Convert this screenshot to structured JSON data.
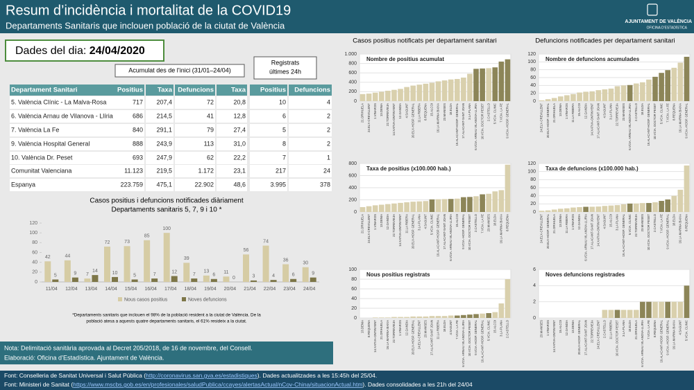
{
  "header": {
    "title": "Resum d’incidència i mortalitat de la COVID19",
    "subtitle": "Departaments Sanitaris que inclouen població de la ciutat de València",
    "logo": [
      "AJUNTAMENT DE VALÈNCIA",
      "OFICINA D'ESTADÍSTICA"
    ]
  },
  "date": {
    "label": "Dades del dia:",
    "value": "24/04/2020"
  },
  "table": {
    "group_cumulative": "Acumulat des de l’inici (31/01–24/04)",
    "group_daily": [
      "Registrats",
      "últimes 24h"
    ],
    "columns": [
      "Departament Sanitari",
      "Positius",
      "Taxa",
      "Defuncions",
      "Taxa",
      "Positius",
      "Defuncions"
    ],
    "rows": [
      [
        "5. València Clínic - La Malva-Rosa",
        "717",
        "207,4",
        "72",
        "20,8",
        "10",
        "4"
      ],
      [
        "6. València Arnau de Vilanova - Llíria",
        "686",
        "214,5",
        "41",
        "12,8",
        "6",
        "2"
      ],
      [
        "7. València La Fe",
        "840",
        "291,1",
        "79",
        "27,4",
        "5",
        "2"
      ],
      [
        "9. València Hospital General",
        "888",
        "243,9",
        "113",
        "31,0",
        "8",
        "2"
      ],
      [
        "10. València Dr. Peset",
        "693",
        "247,9",
        "62",
        "22,2",
        "7",
        "1"
      ]
    ],
    "totals": [
      [
        "Comunitat Valenciana",
        "11.123",
        "219,5",
        "1.172",
        "23,1",
        "217",
        "24"
      ],
      [
        "Espanya",
        "223.759",
        "475,1",
        "22.902",
        "48,6",
        "3.995",
        "378"
      ]
    ]
  },
  "panel_titles": [
    "Casos positius notificats per departament sanitari",
    "Defuncions notificades per departament sanitari"
  ],
  "notes": [
    "Nota: Delimitació sanitària aprovada al Decret 205/2018, de 16 de novembre, del Consell.",
    "Elaboració: Oficina d’Estadística. Ajuntament de València."
  ],
  "footer": [
    [
      "Font: Conselleria de Sanitat Universal i Salut Pública (",
      "http://coronavirus.san.gva.es/estadistiques",
      "). Dades actualitzades a les 15:45h del 25/04."
    ],
    [
      "Font: Ministeri de Sanitat (",
      "https://www.mscbs.gob.es/en/profesionales/saludPublica/ccayes/alertasActual/nCov-China/situacionActual.htm",
      "). Dades consolidades a les 21h del 24/04"
    ]
  ],
  "chart_data": [
    {
      "type": "grouped",
      "title": "Casos positius i defuncions notificades diàriament",
      "subtitle": "Departaments sanitaris 5, 7, 9 i 10 *",
      "note": [
        "*Departaments sanitaris que inclouen el 98% de la població resident a la ciutat de València. De la",
        "població atesa a aquests quatre departaments sanitaris, el 61% resideix a la ciutat."
      ],
      "categories": [
        "11/04",
        "12/04",
        "13/04",
        "14/04",
        "15/04",
        "16/04",
        "17/04",
        "18/04",
        "19/04",
        "20/04",
        "21/04",
        "22/04",
        "23/04",
        "24/04"
      ],
      "series": [
        {
          "name": "Nous casos positius",
          "color": "#d6cca4",
          "values": [
            42,
            44,
            7,
            72,
            73,
            85,
            100,
            39,
            13,
            11,
            56,
            74,
            36,
            30
          ]
        },
        {
          "name": "Noves defuncions",
          "color": "#7d7648",
          "values": [
            5,
            9,
            14,
            10,
            5,
            7,
            12,
            7,
            6,
            0,
            3,
            4,
            6,
            9
          ]
        }
      ],
      "ylim": [
        0,
        120
      ],
      "yticks": [
        0,
        20,
        40,
        60,
        80,
        100,
        120
      ],
      "grid": false,
      "legend": "bottom"
    },
    {
      "type": "bar",
      "title": "Nombre de positius acumulat",
      "ylim": [
        0,
        1000
      ],
      "yticks": [
        0,
        200,
        400,
        600,
        800,
        {
          "value": 1000,
          "label": "1.000"
        }
      ],
      "grid": true,
      "categories": [
        "21.ORIHUELA",
        "24.ELX-CREVILLENT",
        "1.VINAROS",
        "13.DENIA",
        "22.TORREVIEJA",
        "14.XATIVA-ONTINYENT",
        "12.GANDIA",
        "4.SAGUNT",
        "20.ELX-HOSP. GENERAL",
        "11.LA RIBERA",
        "8.REQUENA",
        "15.ALCOI",
        "16.LA MARINA BAIXA",
        "23.MANISES",
        "18.ELDA",
        "19.ALACANT-HOSP. GENERAL",
        "17.ALACANT-SANT JOAN",
        "3.LA PLANA",
        "6.VCIA. ARNAU VILANOVA-LLIRIA",
        "10.VCIA. DOCTOR PESET",
        "2.CASTELLO",
        "5.VCIA. CLINIC",
        "7.VCIA. LA FE",
        "9.VCIA.-HOSP. GENERAL"
      ],
      "values": [
        150,
        160,
        180,
        200,
        220,
        240,
        260,
        300,
        330,
        350,
        370,
        390,
        420,
        440,
        460,
        470,
        500,
        580,
        686,
        693,
        700,
        717,
        840,
        888
      ],
      "colors": [
        "#d9d0ad",
        "#d9d0ad",
        "#d9d0ad",
        "#d9d0ad",
        "#d9d0ad",
        "#d9d0ad",
        "#d9d0ad",
        "#d9d0ad",
        "#d9d0ad",
        "#d9d0ad",
        "#d9d0ad",
        "#d9d0ad",
        "#d9d0ad",
        "#d9d0ad",
        "#d9d0ad",
        "#d9d0ad",
        "#d9d0ad",
        "#d9d0ad",
        "#8c8558",
        "#8c8558",
        "#d9d0ad",
        "#8c8558",
        "#8c8558",
        "#8c8558"
      ]
    },
    {
      "type": "bar",
      "title": "Nombre de defuncions acumulades",
      "ylim": [
        0,
        120
      ],
      "yticks": [
        0,
        20,
        40,
        60,
        80,
        100,
        120
      ],
      "grid": true,
      "categories": [
        "24.ELX-CREVILLENT",
        "20.ELX-HOSP. GENERAL",
        "21.ORIHUELA",
        "13.DENIA",
        "1.VINAROS",
        "11.LA RIBERA",
        "15.ALCOI",
        "12.GANDIA",
        "14.XATIVA-ONTINYENT",
        "17.ALACANT-SANT JOAN",
        "4.SAGUNT",
        "3.LA PLANA",
        "22.TORREVIEJA",
        "23.MANISES",
        "6.VCIA. ARNAU VILANOVA-LLIRIA",
        "2.CASTELLO",
        "18.ELDA",
        "19.ALACANT-HOSP. GENERAL",
        "10.VCIA. DOCTOR PESET",
        "5.VCIA. CLINIC",
        "7.VCIA. LA FE",
        "8.REQUENA",
        "16.LA MARINA BAIXA",
        "9.VCIA.-HOSP. GENERAL"
      ],
      "values": [
        2,
        5,
        8,
        12,
        15,
        18,
        22,
        24,
        25,
        28,
        30,
        32,
        38,
        40,
        41,
        45,
        48,
        55,
        62,
        72,
        79,
        85,
        98,
        113
      ],
      "colors": [
        "#d9d0ad",
        "#d9d0ad",
        "#d9d0ad",
        "#d9d0ad",
        "#d9d0ad",
        "#d9d0ad",
        "#d9d0ad",
        "#d9d0ad",
        "#d9d0ad",
        "#d9d0ad",
        "#d9d0ad",
        "#d9d0ad",
        "#d9d0ad",
        "#d9d0ad",
        "#8c8558",
        "#d9d0ad",
        "#d9d0ad",
        "#d9d0ad",
        "#8c8558",
        "#8c8558",
        "#8c8558",
        "#d9d0ad",
        "#d9d0ad",
        "#8c8558"
      ]
    },
    {
      "type": "bar",
      "title": "Taxa de positius (x100.000 hab.)",
      "ylim": [
        0,
        800
      ],
      "yticks": [
        0,
        200,
        400,
        600,
        800
      ],
      "grid": true,
      "categories": [
        "21.ORIHUELA",
        "24.ELX-CREVILLENT",
        "1.VINAROS",
        "13.DENIA",
        "12.GANDIA",
        "22.TORREVIEJA",
        "14.XATIVA-ONTINYENT",
        "11.LA RIBERA",
        "20.ELX-HOSP. GENERAL",
        "3.LA PLANA",
        "4.SAGUNT",
        "5.VCIA. CLINIC",
        "19.ALACANT-HOSP. GENERAL",
        "17.ALACANT-SANT JOAN",
        "6.VCIA. ARNAU VILANOVA-LLIRIA",
        "15.ALCOI",
        "9.VCIA.-HOSP. GENERAL",
        "10.VCIA. DOCTOR PESET",
        "2.CASTELLO",
        "7.VCIA. LA FE",
        "23.MANISES",
        "18.ELDA",
        "16.LA MARINA BAIXA",
        "8.REQUENA"
      ],
      "values": [
        80,
        95,
        110,
        120,
        130,
        140,
        150,
        160,
        170,
        175,
        180,
        207.4,
        210,
        212,
        214.5,
        220,
        243.9,
        247.9,
        260,
        291.1,
        300,
        340,
        360,
        780
      ],
      "colors": [
        "#d9d0ad",
        "#d9d0ad",
        "#d9d0ad",
        "#d9d0ad",
        "#d9d0ad",
        "#d9d0ad",
        "#d9d0ad",
        "#d9d0ad",
        "#d9d0ad",
        "#d9d0ad",
        "#d9d0ad",
        "#8c8558",
        "#d9d0ad",
        "#d9d0ad",
        "#8c8558",
        "#d9d0ad",
        "#8c8558",
        "#8c8558",
        "#d9d0ad",
        "#8c8558",
        "#d9d0ad",
        "#d9d0ad",
        "#d9d0ad",
        "#d9d0ad"
      ]
    },
    {
      "type": "bar",
      "title": "Taxa de defuncions (x100.000 hab.)",
      "ylim": [
        0,
        120
      ],
      "yticks": [
        0,
        20,
        40,
        60,
        80,
        100,
        120
      ],
      "grid": true,
      "categories": [
        "24.ELX-CREVILLENT",
        "20.ELX-HOSP. GENERAL",
        "21.ORIHUELA",
        "13.DENIA",
        "11.LA RIBERA",
        "1.VINAROS",
        "12.GANDIA",
        "6.VCIA. ARNAU VILANOVA-LLIRIA",
        "17.ALACANT-SANT JOAN",
        "14.XATIVA-ONTINYENT",
        "4.SAGUNT",
        "15.ALCOI",
        "3.LA PLANA",
        "19.ALACANT-HOSP. GENERAL",
        "5.VCIA. CLINIC",
        "22.TORREVIEJA",
        "23.MANISES",
        "10.VCIA. DOCTOR PESET",
        "2.CASTELLO",
        "7.VCIA. LA FE",
        "9.VCIA.-HOSP. GENERAL",
        "18.ELDA",
        "16.LA MARINA BAIXA",
        "8.REQUENA"
      ],
      "values": [
        3,
        4,
        6,
        8,
        9,
        11,
        12,
        12.8,
        13,
        13.5,
        15,
        16,
        17,
        19,
        20.8,
        21,
        22,
        22.2,
        24,
        27.4,
        31,
        40,
        55,
        115
      ],
      "colors": [
        "#d9d0ad",
        "#d9d0ad",
        "#d9d0ad",
        "#d9d0ad",
        "#d9d0ad",
        "#d9d0ad",
        "#d9d0ad",
        "#8c8558",
        "#d9d0ad",
        "#d9d0ad",
        "#d9d0ad",
        "#d9d0ad",
        "#d9d0ad",
        "#d9d0ad",
        "#8c8558",
        "#d9d0ad",
        "#d9d0ad",
        "#8c8558",
        "#d9d0ad",
        "#8c8558",
        "#8c8558",
        "#d9d0ad",
        "#d9d0ad",
        "#d9d0ad"
      ]
    },
    {
      "type": "bar",
      "title": "Nous positius registrats",
      "ylim": [
        0,
        100
      ],
      "yticks": [
        0,
        20,
        40,
        60,
        80,
        100
      ],
      "grid": true,
      "categories": [
        "13.DENIA",
        "8.REQUENA",
        "14.XATIVA-ONTINYENT",
        "21.ORIHUELA",
        "16.LA MARINA BAIXA",
        "22.TORREVIEJA",
        "1.VINAROS",
        "12.GANDIA",
        "20.ELX-HOSP. GENERAL",
        "24.ELX-CREVILLENT",
        "23.MANISES",
        "17.ALACANT-SANT JOAN",
        "11.LA RIBERA",
        "18.ELDA",
        "4.SAGUNT",
        "7.VCIA. LA FE",
        "6.VCIA. ARNAU VILANOVA-LLIRIA",
        "10.VCIA. DOCTOR PESET",
        "9.VCIA.-HOSP. GENERAL",
        "19.ALACANT-HOSP. GENERAL",
        "5.VCIA. CLINIC",
        "15.ALCOI",
        "3.LA PLANA",
        "2.CASTELLO"
      ],
      "values": [
        0,
        0,
        1,
        1,
        1,
        2,
        2,
        2,
        3,
        3,
        3,
        4,
        4,
        4,
        5,
        5,
        6,
        7,
        8,
        9,
        10,
        12,
        30,
        80
      ],
      "colors": [
        "#d9d0ad",
        "#d9d0ad",
        "#d9d0ad",
        "#d9d0ad",
        "#d9d0ad",
        "#d9d0ad",
        "#d9d0ad",
        "#d9d0ad",
        "#d9d0ad",
        "#d9d0ad",
        "#d9d0ad",
        "#d9d0ad",
        "#d9d0ad",
        "#d9d0ad",
        "#d9d0ad",
        "#8c8558",
        "#8c8558",
        "#8c8558",
        "#8c8558",
        "#d9d0ad",
        "#8c8558",
        "#d9d0ad",
        "#d9d0ad",
        "#d9d0ad"
      ]
    },
    {
      "type": "bar",
      "title": "Noves defuncions registrades",
      "ylim": [
        0,
        6
      ],
      "yticks": [
        0,
        2,
        4,
        6
      ],
      "grid": true,
      "categories": [
        "23.MANISES",
        "1.VINAROS",
        "14.XATIVA-ONTINYENT",
        "15.ALCOI",
        "12.GANDIA",
        "13.DENIA",
        "20.ELX-HOSP. GENERAL",
        "17.ALACANT-SANT JOAN",
        "22.TORREVIEJA",
        "24.ELX-CREVILLENT",
        "2.CASTELLO",
        "11.LA RIBERA",
        "10.VCIA. DOCTOR PESET",
        "3.LA PLANA",
        "18.ELDA",
        "21.ORIHUELA",
        "6.VCIA. ARNAU VILANOVA-LLIRIA",
        "7.VCIA. LA FE",
        "8.REQUENA",
        "19.ALACANT-HOSP. GENERAL",
        "9.VCIA.-HOSP. GENERAL",
        "16.LA MARINA BAIXA",
        "4.SAGUNT",
        "5.VCIA. CLINIC"
      ],
      "values": [
        0,
        0,
        0,
        0,
        0,
        0,
        0,
        0,
        0,
        0,
        1,
        1,
        1,
        1,
        1,
        1,
        2,
        2,
        2,
        2,
        2,
        2,
        2,
        4
      ],
      "colors": [
        "#d9d0ad",
        "#d9d0ad",
        "#d9d0ad",
        "#d9d0ad",
        "#d9d0ad",
        "#d9d0ad",
        "#d9d0ad",
        "#d9d0ad",
        "#d9d0ad",
        "#d9d0ad",
        "#d9d0ad",
        "#d9d0ad",
        "#8c8558",
        "#d9d0ad",
        "#d9d0ad",
        "#d9d0ad",
        "#8c8558",
        "#8c8558",
        "#d9d0ad",
        "#d9d0ad",
        "#8c8558",
        "#d9d0ad",
        "#d9d0ad",
        "#8c8558"
      ]
    }
  ]
}
